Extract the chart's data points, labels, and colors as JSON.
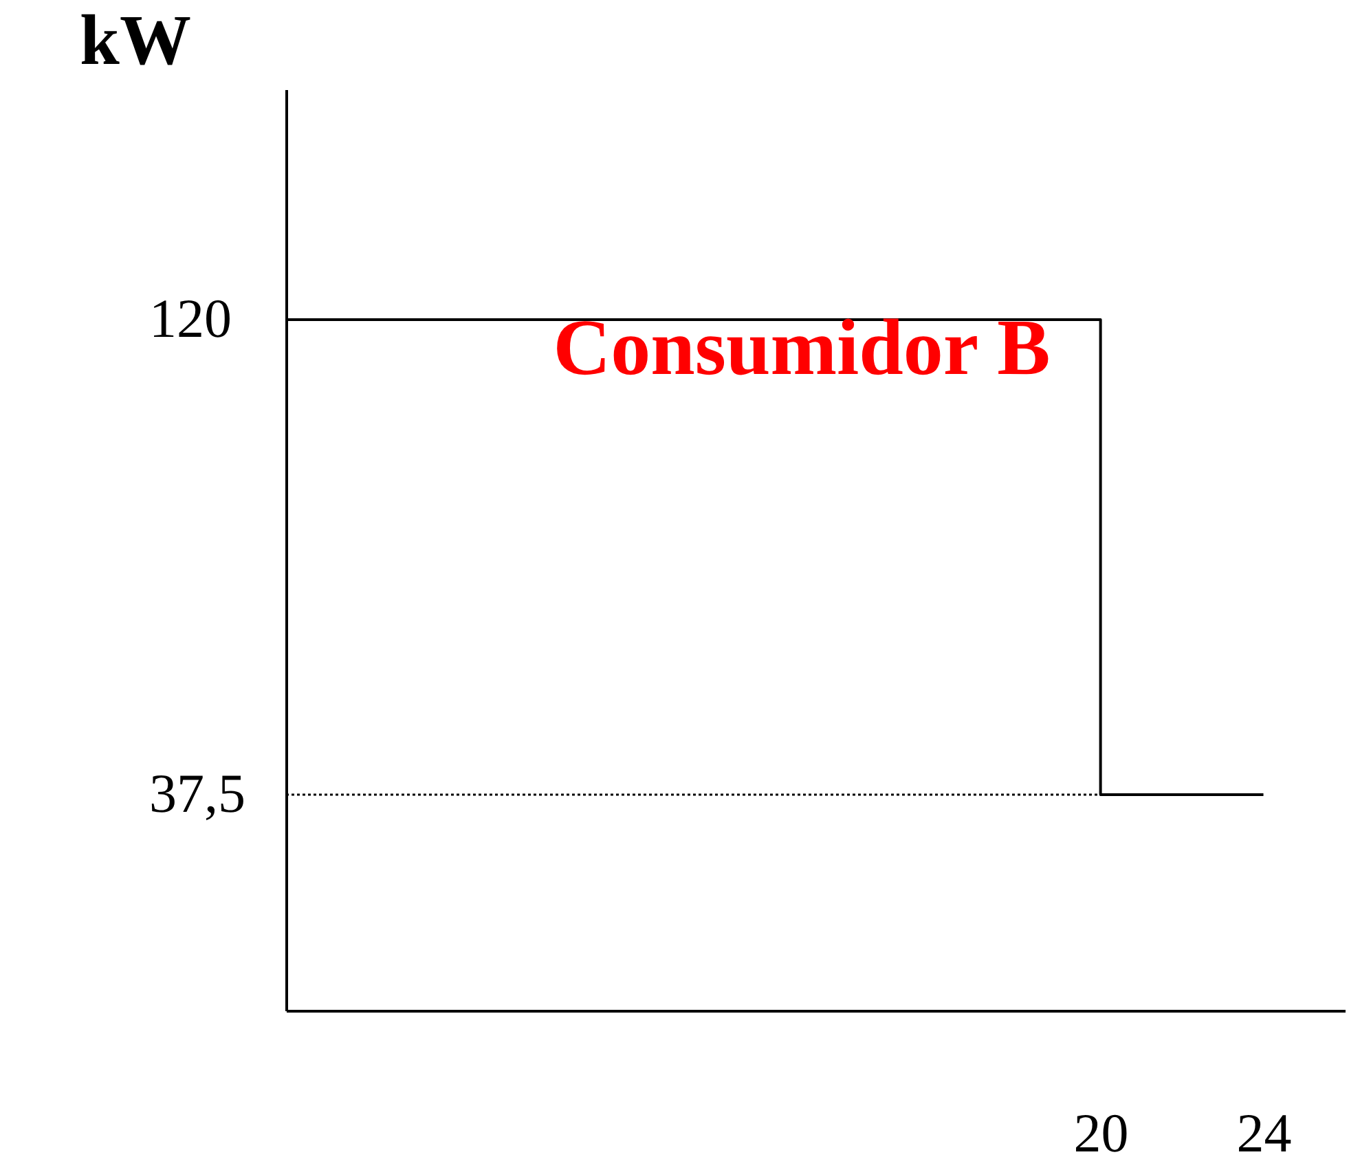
{
  "chart_data": {
    "type": "step",
    "title": "Consumidor B",
    "ylabel": "kW",
    "x": [
      0,
      20,
      24
    ],
    "values": [
      120,
      37.5,
      37.5
    ],
    "color": "#000000",
    "xlim": [
      0,
      26
    ],
    "ylim": [
      0,
      160
    ],
    "xticks": [
      20,
      24
    ],
    "yticks": [
      120,
      {
        "value": 37.5,
        "label": "37,5"
      }
    ],
    "ref_lines": [
      {
        "axis": "y",
        "value": 37.5,
        "line_style": "dotted",
        "color": "#000000"
      }
    ],
    "grid": false
  }
}
